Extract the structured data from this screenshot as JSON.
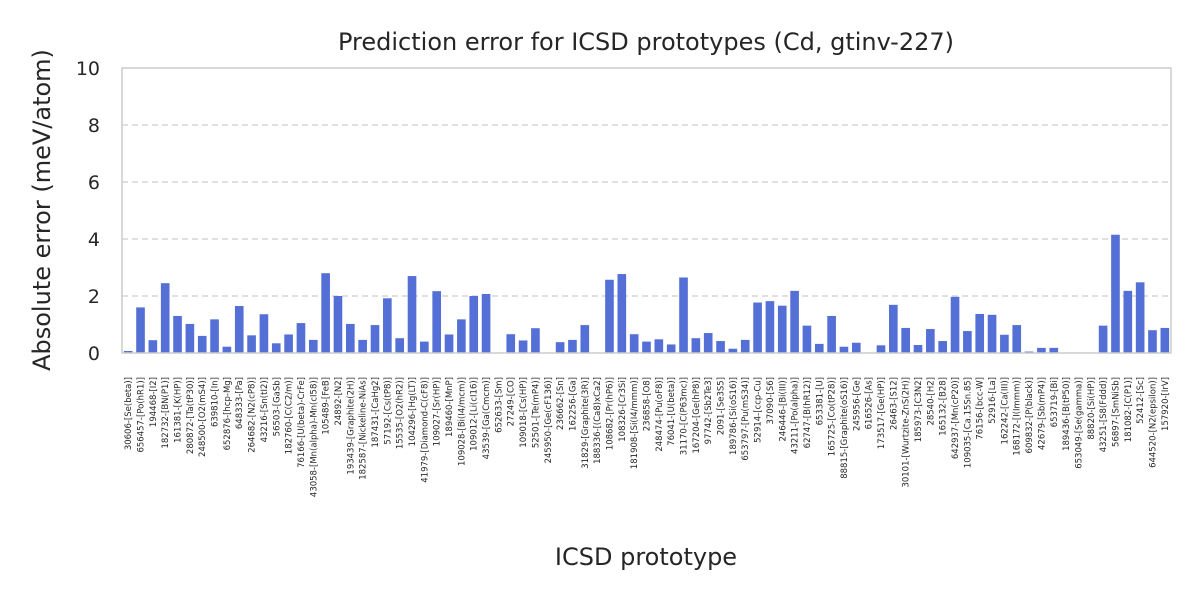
{
  "chart_data": {
    "type": "bar",
    "title": "Prediction error for ICSD prototypes (Cd, gtinv-227)",
    "xlabel": "ICSD prototype",
    "ylabel": "Absolute error (meV/atom)",
    "ylim": [
      0,
      10
    ],
    "yticks": [
      0,
      2,
      4,
      6,
      8,
      10
    ],
    "grid": "y-dashed",
    "bar_color": "#5470d6",
    "categories": [
      "30606-[Se(beta)]",
      "656457-[Po(hR1)]",
      "194468-[I2]",
      "182732-[BN(P1)]",
      "161381-[K(HP)]",
      "280872-[Ta(tP30)]",
      "248500-[O2(mS4)]",
      "639810-[In]",
      "652876-[hcp-Mg]",
      "648333-[Pa]",
      "264682-[N2(cP8)]",
      "43216-[Sn(tI2)]",
      "56503-[GaSb]",
      "182760-[C(C2/m)]",
      "76166-[U(beta)-CrFe]",
      "43058-[Mn(alpha)-Mn(cI58)]",
      "105489-[FeB]",
      "24892-[N2]",
      "193439-[Graphite(2H)]",
      "182587-[Nickeline-NiAs]",
      "187431-[CaHg2]",
      "57192-[Cs(tP8)]",
      "15535-[O2(hR2)]",
      "104296-[Hg(LT)]",
      "41979-[Diamond-C(cF8)]",
      "109027-[Sr(HP)]",
      "189460-[MnP]",
      "109028-[Bi(I4/mcm)]",
      "109012-[Li(cI16)]",
      "43539-[Ga(Cmcm)]",
      "652633-[Sm]",
      "27249-[CO]",
      "109018-[Cs(HP)]",
      "52501-[Te(mP4)]",
      "245950-[Ge(cF136)]",
      "236662-[Sn]",
      "162256-[Ga]",
      "31829-[Graphite(3R)]",
      "188336-[(Ca8)xCa2]",
      "108682-[Pr(hP6)]",
      "108326-[Cr3Si]",
      "181908-[Si(I4/mmm)]",
      "236858-[O8]",
      "248474-[Pu(oF8)]",
      "76041-[U(beta)]",
      "31170-[C(P63mc)]",
      "167204-[Ge(hP8)]",
      "97742-[Sb2Te3]",
      "2091-[Se3S5]",
      "189786-[Si(oS16)]",
      "653797-[Pu(mS34)]",
      "52914-[ccp-Cu]",
      "37090-[S6]",
      "246446-[Bi(III)]",
      "43211-[Po(alpha)]",
      "62747-[B(hR12)]",
      "653381-[U]",
      "165725-[Co(tP28)]",
      "88815-[Graphite(oS16)]",
      "245956-[Ge]",
      "616526-[As]",
      "173517-[Ge(HP)]",
      "26463-[S12]",
      "30101-[Wurtzite-ZnS(2H)]",
      "185973-[C3N2]",
      "28540-[H2]",
      "165132-[B28]",
      "642937-[Mn(cP20)]",
      "109035-[Ca.15Sn.85]",
      "76156-[bcc-W]",
      "52916-[La]",
      "162242-[Ca(III)]",
      "168172-[I(Immm)]",
      "609832-[P(black)]",
      "42679-[Sb(mP4)]",
      "653719-[Bi]",
      "189436-[B(tP50)]",
      "653049-[Se(gamma)]",
      "88820-[Si(HP)]",
      "43251-[S8(Fddd)]",
      "56897-[SmNiSb]",
      "181082-[C(P1)]",
      "52412-[Sc]",
      "644520-[N2(epsilon)]",
      "157920-[IrV]"
    ],
    "values": [
      0.07,
      1.6,
      0.45,
      2.45,
      1.3,
      1.02,
      0.6,
      1.18,
      0.22,
      1.65,
      0.62,
      1.36,
      0.34,
      0.65,
      1.05,
      0.46,
      2.8,
      2.0,
      1.02,
      0.46,
      0.98,
      1.92,
      0.52,
      2.7,
      0.4,
      2.17,
      0.65,
      1.18,
      2.0,
      2.07,
      0.0,
      0.66,
      0.44,
      0.87,
      0.0,
      0.38,
      0.46,
      0.98,
      0.0,
      2.57,
      2.77,
      0.66,
      0.4,
      0.48,
      0.3,
      2.65,
      0.52,
      0.7,
      0.42,
      0.15,
      0.46,
      1.77,
      1.82,
      1.66,
      2.18,
      0.96,
      0.32,
      1.3,
      0.22,
      0.36,
      0.0,
      0.27,
      1.69,
      0.88,
      0.28,
      0.84,
      0.42,
      1.97,
      0.77,
      1.37,
      1.34,
      0.64,
      0.98,
      0.05,
      0.18,
      0.18,
      0.0,
      0.0,
      0.0,
      0.96,
      4.15,
      2.18,
      2.48,
      0.8,
      0.88
    ]
  }
}
